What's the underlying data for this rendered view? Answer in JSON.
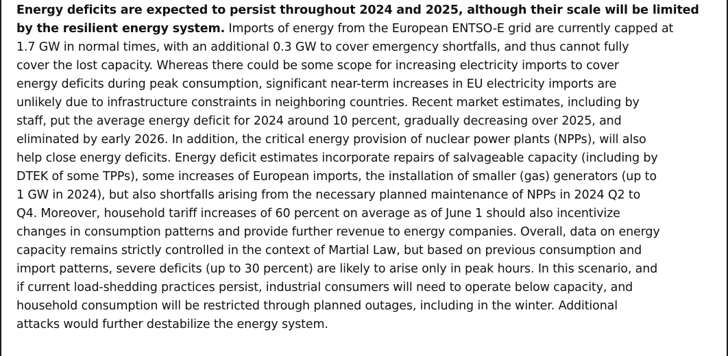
{
  "paragraph": {
    "lead": "Energy deficits are expected to persist throughout 2024 and 2025, although their scale will be limited by the resilient energy system.",
    "body": "Imports of energy from the European ENTSO-E grid are currently capped at 1.7 GW in normal times, with an additional 0.3 GW to cover emergency shortfalls, and thus cannot fully cover the lost capacity. Whereas there could be some scope for increasing electricity imports to cover energy deficits during peak consumption, significant near-term increases in EU electricity imports are unlikely due to infrastructure constraints in neighboring countries. Recent market estimates, including by staff, put the average energy deficit for 2024 around 10 percent, gradually decreasing over 2025, and eliminated by early 2026. In addition, the critical energy provision of nuclear power plants (NPPs), will also help close energy deficits. Energy deficit estimates incorporate repairs of salvageable capacity (including by DTEK of some TPPs), some increases of European imports, the installation of smaller (gas) generators (up to 1 GW in 2024), but also shortfalls arising from the necessary planned maintenance of NPPs in 2024 Q2 to Q4. Moreover, household tariff increases of 60 percent on average as of June 1 should also incentivize changes in consumption patterns and provide further revenue to energy companies. Overall, data on energy capacity remains strictly controlled in the context of Martial Law, but based on previous consumption and import patterns, severe deficits (up to 30 percent) are likely to arise only in peak hours. In this scenario, and if current load-shedding practices persist, industrial consumers will need to operate below capacity, and household consumption will be restricted through planned outages, including in the winter. Additional attacks would further destabilize the energy system.",
    "lines": [
      {
        "bold": "Energy deficits are expected to persist throughout 2024 and 2025, although their scale will be limited",
        "text": ""
      },
      {
        "bold": "by the resilient energy system.",
        "text": " Imports of energy from the European ENTSO-E grid are currently capped at"
      },
      {
        "bold": "",
        "text": "1.7 GW in normal times, with an additional 0.3 GW to cover emergency shortfalls, and thus cannot fully"
      },
      {
        "bold": "",
        "text": "cover the lost capacity. Whereas there could be some scope for increasing electricity imports to cover"
      },
      {
        "bold": "",
        "text": "energy deficits during peak consumption, significant near-term increases in EU electricity imports are"
      },
      {
        "bold": "",
        "text": "unlikely due to infrastructure constraints in neighboring countries. Recent market estimates, including by"
      },
      {
        "bold": "",
        "text": "staff, put the average energy deficit for 2024 around 10 percent, gradually decreasing over 2025, and"
      },
      {
        "bold": "",
        "text": "eliminated by early 2026. In addition, the critical energy provision of nuclear power plants (NPPs), will also"
      },
      {
        "bold": "",
        "text": "help close energy deficits. Energy deficit estimates incorporate repairs of salvageable capacity (including by"
      },
      {
        "bold": "",
        "text": "DTEK of some TPPs), some increases of European imports, the installation of smaller (gas) generators (up to"
      },
      {
        "bold": "",
        "text": "1 GW in 2024), but also shortfalls arising from the necessary planned maintenance of NPPs in 2024 Q2 to"
      },
      {
        "bold": "",
        "text": "Q4. Moreover, household tariff increases of 60 percent on average as of June 1 should also incentivize"
      },
      {
        "bold": "",
        "text": "changes in consumption patterns and provide further revenue to energy companies. Overall, data on energy"
      },
      {
        "bold": "",
        "text": "capacity remains strictly controlled in the context of Martial Law, but based on previous consumption and"
      },
      {
        "bold": "",
        "text": "import patterns, severe deficits (up to 30 percent) are likely to arise only in peak hours. In this scenario, and"
      },
      {
        "bold": "",
        "text": "if current load-shedding practices persist, industrial consumers will need to operate below capacity, and"
      },
      {
        "bold": "",
        "text": "household consumption will be restricted through planned outages, including in the winter. Additional"
      },
      {
        "bold": "",
        "text": "attacks would further destabilize the energy system."
      }
    ]
  }
}
